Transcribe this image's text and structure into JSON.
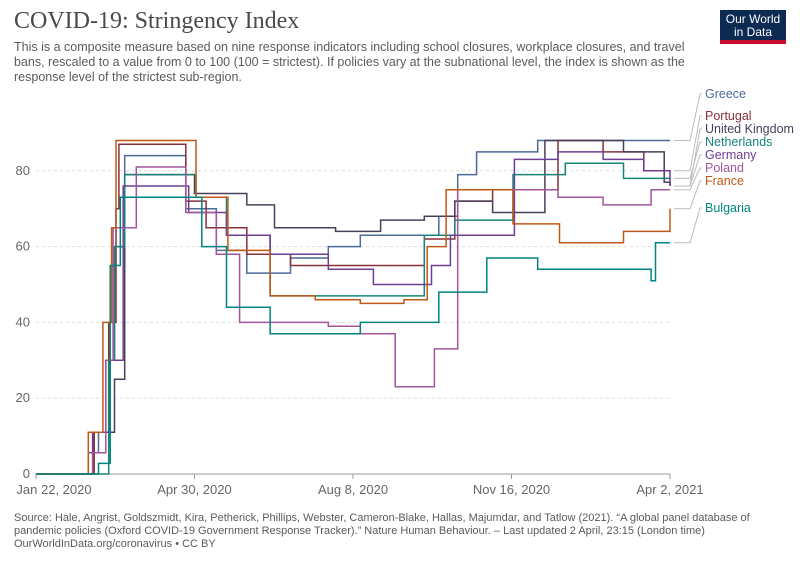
{
  "header": {
    "title": "COVID-19: Stringency Index",
    "subtitle": "This is a composite measure based on nine response indicators including school closures, workplace closures, and travel bans, rescaled to a value from 0 to 100 (100 = strictest). If policies vary at the subnational level, the index is shown as the response level of the strictest sub-region.",
    "logo_line1": "Our World",
    "logo_line2": "in Data"
  },
  "footer": {
    "source": "Source: Hale, Angrist, Goldszmidt, Kira, Petherick, Phillips, Webster, Cameron-Blake, Hallas, Majumdar, and Tatlow (2021). “A global panel database of pandemic policies (Oxford COVID-19 Government Response Tracker).” Nature Human Behaviour. – Last updated 2 April, 23:15 (London time)",
    "url": "OurWorldInData.org/coronavirus • CC BY"
  },
  "chart_data": {
    "type": "line",
    "x_type": "date",
    "xlim": [
      "2020-01-22",
      "2021-04-02"
    ],
    "ylim": [
      0,
      100
    ],
    "x_ticks": [
      "Jan 22, 2020",
      "Apr 30, 2020",
      "Aug 8, 2020",
      "Nov 16, 2020",
      "Apr 2, 2021"
    ],
    "y_ticks": [
      0,
      20,
      40,
      60,
      80
    ],
    "grid": true,
    "legend_placement": "right-inline",
    "series": [
      {
        "name": "Greece",
        "color": "#4c6a9c",
        "points": [
          [
            "2020-01-22",
            0
          ],
          [
            "2020-02-27",
            5.6
          ],
          [
            "2020-03-05",
            11
          ],
          [
            "2020-03-10",
            30
          ],
          [
            "2020-03-16",
            60
          ],
          [
            "2020-03-23",
            84
          ],
          [
            "2020-04-10",
            84
          ],
          [
            "2020-05-04",
            70
          ],
          [
            "2020-05-25",
            59
          ],
          [
            "2020-06-15",
            53
          ],
          [
            "2020-07-15",
            57
          ],
          [
            "2020-08-10",
            60
          ],
          [
            "2020-09-01",
            63
          ],
          [
            "2020-10-01",
            63
          ],
          [
            "2020-10-25",
            68
          ],
          [
            "2020-11-07",
            79
          ],
          [
            "2020-11-20",
            85
          ],
          [
            "2021-01-01",
            88
          ],
          [
            "2021-02-15",
            88
          ],
          [
            "2021-04-02",
            88
          ]
        ]
      },
      {
        "name": "Portugal",
        "color": "#883039",
        "points": [
          [
            "2020-01-22",
            0
          ],
          [
            "2020-02-26",
            0
          ],
          [
            "2020-03-02",
            11
          ],
          [
            "2020-03-12",
            40
          ],
          [
            "2020-03-17",
            70
          ],
          [
            "2020-03-19",
            87
          ],
          [
            "2020-05-04",
            72
          ],
          [
            "2020-05-18",
            65
          ],
          [
            "2020-06-15",
            58
          ],
          [
            "2020-07-15",
            55
          ],
          [
            "2020-08-20",
            55
          ],
          [
            "2020-09-15",
            55
          ],
          [
            "2020-10-15",
            62
          ],
          [
            "2020-11-05",
            72
          ],
          [
            "2020-12-01",
            75
          ],
          [
            "2021-01-15",
            88
          ],
          [
            "2021-02-15",
            85
          ],
          [
            "2021-03-15",
            80
          ],
          [
            "2021-04-02",
            80
          ]
        ]
      },
      {
        "name": "United Kingdom",
        "color": "#4a3f5a",
        "points": [
          [
            "2020-01-22",
            0
          ],
          [
            "2020-03-01",
            11
          ],
          [
            "2020-03-16",
            25
          ],
          [
            "2020-03-23",
            79
          ],
          [
            "2020-05-10",
            74
          ],
          [
            "2020-06-15",
            71
          ],
          [
            "2020-07-04",
            65
          ],
          [
            "2020-08-15",
            64
          ],
          [
            "2020-09-15",
            67
          ],
          [
            "2020-10-15",
            68
          ],
          [
            "2020-11-05",
            72
          ],
          [
            "2020-12-01",
            69
          ],
          [
            "2021-01-06",
            88
          ],
          [
            "2021-03-01",
            85
          ],
          [
            "2021-03-29",
            77
          ],
          [
            "2021-04-02",
            76
          ]
        ]
      },
      {
        "name": "Netherlands",
        "color": "#18857a",
        "points": [
          [
            "2020-01-22",
            0
          ],
          [
            "2020-02-28",
            0
          ],
          [
            "2020-03-12",
            30
          ],
          [
            "2020-03-16",
            60
          ],
          [
            "2020-03-23",
            79
          ],
          [
            "2020-05-11",
            73
          ],
          [
            "2020-06-01",
            63
          ],
          [
            "2020-07-01",
            47
          ],
          [
            "2020-08-15",
            47
          ],
          [
            "2020-09-20",
            47
          ],
          [
            "2020-10-15",
            63
          ],
          [
            "2020-11-05",
            67
          ],
          [
            "2020-12-15",
            79
          ],
          [
            "2021-01-20",
            82
          ],
          [
            "2021-03-01",
            78
          ],
          [
            "2021-04-02",
            78
          ]
        ]
      },
      {
        "name": "Germany",
        "color": "#6d3e91",
        "points": [
          [
            "2020-01-22",
            0
          ],
          [
            "2020-03-01",
            11
          ],
          [
            "2020-03-13",
            30
          ],
          [
            "2020-03-22",
            76
          ],
          [
            "2020-05-06",
            69
          ],
          [
            "2020-06-01",
            63
          ],
          [
            "2020-07-01",
            58
          ],
          [
            "2020-08-10",
            54
          ],
          [
            "2020-09-10",
            50
          ],
          [
            "2020-10-01",
            50
          ],
          [
            "2020-10-20",
            55
          ],
          [
            "2020-11-02",
            63
          ],
          [
            "2020-12-16",
            83
          ],
          [
            "2021-01-15",
            85
          ],
          [
            "2021-02-15",
            83
          ],
          [
            "2021-03-15",
            80
          ],
          [
            "2021-04-02",
            76
          ]
        ]
      },
      {
        "name": "Poland",
        "color": "#a2559c",
        "points": [
          [
            "2020-01-22",
            0
          ],
          [
            "2020-03-01",
            5.6
          ],
          [
            "2020-03-10",
            30
          ],
          [
            "2020-03-15",
            65
          ],
          [
            "2020-03-31",
            81
          ],
          [
            "2020-05-04",
            69
          ],
          [
            "2020-05-25",
            58
          ],
          [
            "2020-06-10",
            40
          ],
          [
            "2020-07-15",
            40
          ],
          [
            "2020-08-10",
            39
          ],
          [
            "2020-09-01",
            37
          ],
          [
            "2020-09-25",
            23
          ],
          [
            "2020-10-15",
            23
          ],
          [
            "2020-10-22",
            33
          ],
          [
            "2020-11-07",
            75
          ],
          [
            "2020-12-28",
            75
          ],
          [
            "2021-01-15",
            73
          ],
          [
            "2021-02-15",
            71
          ],
          [
            "2021-03-20",
            75
          ],
          [
            "2021-04-02",
            75
          ]
        ]
      },
      {
        "name": "France",
        "color": "#c05917",
        "points": [
          [
            "2020-01-22",
            0
          ],
          [
            "2020-02-27",
            11
          ],
          [
            "2020-03-08",
            40
          ],
          [
            "2020-03-14",
            65
          ],
          [
            "2020-03-17",
            88
          ],
          [
            "2020-05-11",
            73
          ],
          [
            "2020-06-02",
            59
          ],
          [
            "2020-07-01",
            47
          ],
          [
            "2020-08-01",
            46
          ],
          [
            "2020-09-01",
            45
          ],
          [
            "2020-10-01",
            46
          ],
          [
            "2020-10-17",
            60
          ],
          [
            "2020-10-30",
            75
          ],
          [
            "2020-12-15",
            66
          ],
          [
            "2021-01-16",
            61
          ],
          [
            "2021-03-01",
            64
          ],
          [
            "2021-04-02",
            70
          ]
        ]
      },
      {
        "name": "Bulgaria",
        "color": "#00847e",
        "points": [
          [
            "2020-01-22",
            0
          ],
          [
            "2020-03-05",
            2.8
          ],
          [
            "2020-03-13",
            55
          ],
          [
            "2020-03-20",
            73
          ],
          [
            "2020-04-30",
            73
          ],
          [
            "2020-05-15",
            60
          ],
          [
            "2020-06-01",
            44
          ],
          [
            "2020-07-01",
            37
          ],
          [
            "2020-08-01",
            37
          ],
          [
            "2020-09-01",
            40
          ],
          [
            "2020-10-01",
            40
          ],
          [
            "2020-10-25",
            48
          ],
          [
            "2020-11-27",
            57
          ],
          [
            "2021-01-01",
            54
          ],
          [
            "2021-03-01",
            54
          ],
          [
            "2021-03-20",
            51
          ],
          [
            "2021-03-23",
            61
          ],
          [
            "2021-04-02",
            61
          ]
        ]
      }
    ]
  }
}
